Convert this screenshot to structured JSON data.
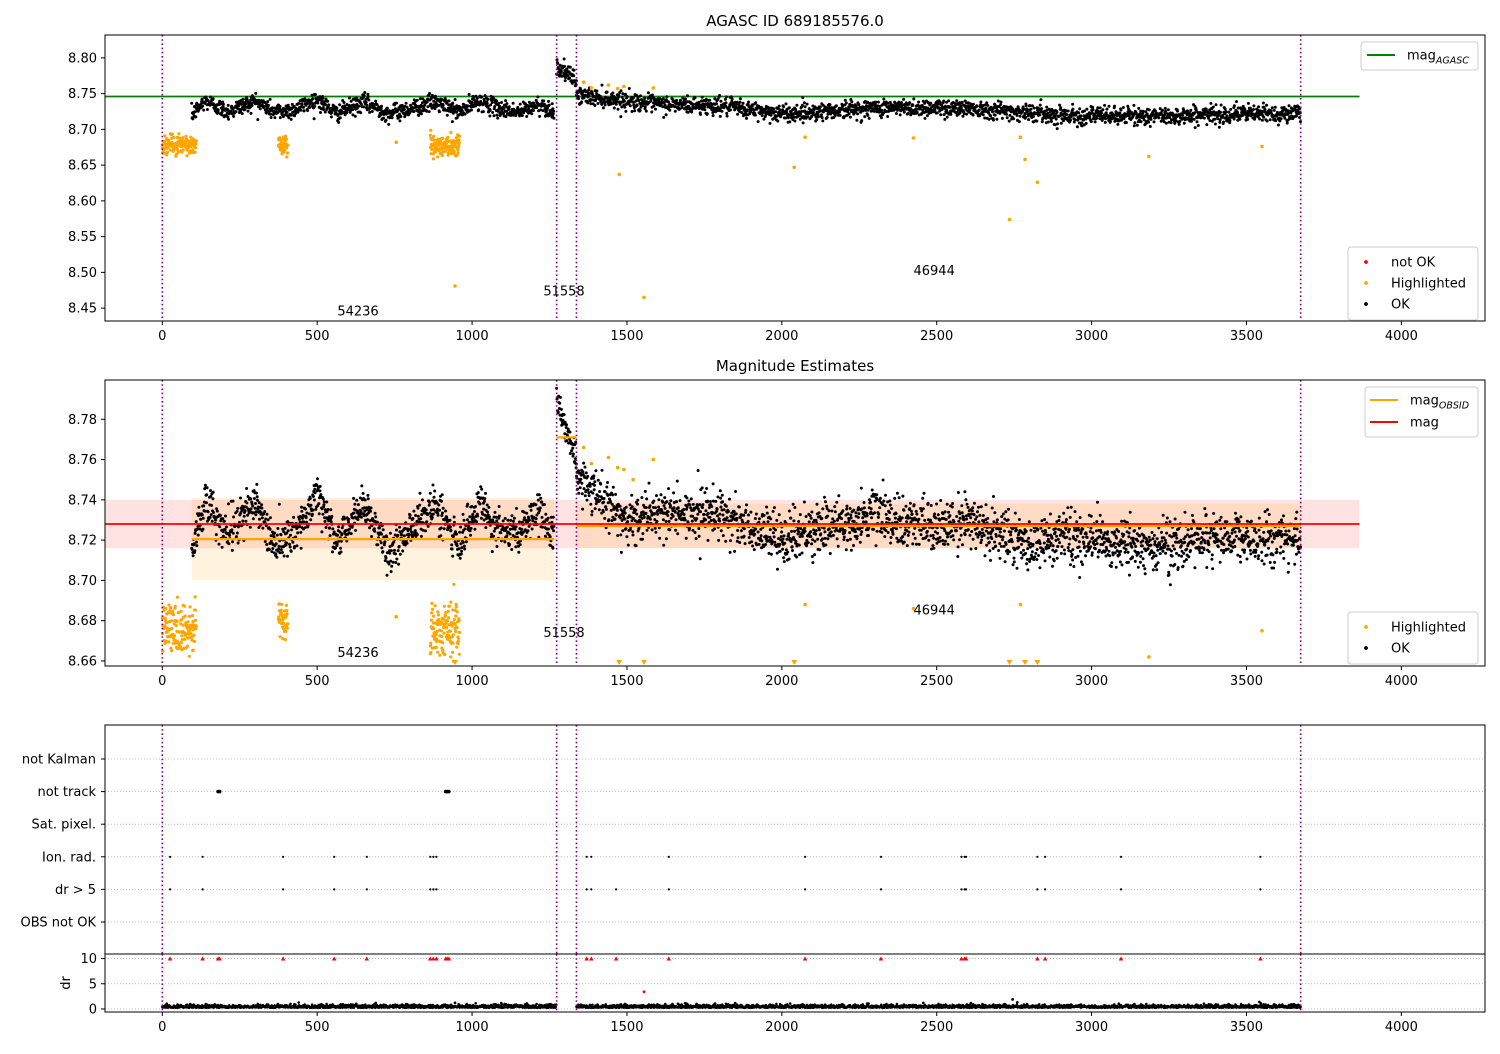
{
  "chart_data": [
    {
      "type": "scatter",
      "title": "AGASC ID 689185576.0",
      "xlim": [
        -185,
        4270
      ],
      "ylim": [
        8.432,
        8.832
      ],
      "xticks": [
        0,
        500,
        1000,
        1500,
        2000,
        2500,
        3000,
        3500,
        4000
      ],
      "yticks": [
        8.45,
        8.5,
        8.55,
        8.6,
        8.65,
        8.7,
        8.75,
        8.8
      ],
      "grid": false,
      "observation_boundaries": [
        0,
        1273,
        1337,
        3675
      ],
      "obsid_labels": [
        {
          "text": "54236",
          "x": 565,
          "y": 8.44
        },
        {
          "text": "51558",
          "x": 1230,
          "y": 8.468
        },
        {
          "text": "46944",
          "x": 2425,
          "y": 8.496
        }
      ],
      "reference_line": {
        "name": "mag_AGASC",
        "y": 8.746,
        "x": [
          -185,
          3865
        ],
        "color": "#008000"
      },
      "legend_upper": {
        "position": "top-right",
        "entries": [
          {
            "main": "mag",
            "sub": "AGASC",
            "color": "#008000",
            "kind": "line"
          }
        ]
      },
      "legend_lower": {
        "position": "bottom-right",
        "entries": [
          {
            "label": "not OK",
            "color": "#ff0000",
            "kind": "marker"
          },
          {
            "label": "Highlighted",
            "color": "#ffa500",
            "kind": "marker"
          },
          {
            "label": "OK",
            "color": "#000000",
            "kind": "marker"
          }
        ]
      },
      "series": [
        {
          "name": "OK",
          "color": "#000000",
          "segments": [
            {
              "x": [
                95,
                1265
              ],
              "points": [
                [
                  95,
                  8.72
                ],
                [
                  140,
                  8.74
                ],
                [
                  210,
                  8.725
                ],
                [
                  300,
                  8.74
                ],
                [
                  360,
                  8.725
                ],
                [
                  420,
                  8.727
                ],
                [
                  500,
                  8.742
                ],
                [
                  560,
                  8.722
                ],
                [
                  650,
                  8.738
                ],
                [
                  730,
                  8.722
                ],
                [
                  810,
                  8.73
                ],
                [
                  880,
                  8.738
                ],
                [
                  960,
                  8.724
                ],
                [
                  1020,
                  8.74
                ],
                [
                  1080,
                  8.73
                ],
                [
                  1150,
                  8.724
                ],
                [
                  1220,
                  8.735
                ],
                [
                  1265,
                  8.724
                ]
              ],
              "noise": 0.006
            },
            {
              "x": [
                1273,
                1337
              ],
              "points": [
                [
                  1273,
                  8.788
                ],
                [
                  1337,
                  8.768
                ]
              ],
              "noise": 0.006
            },
            {
              "x": [
                1337,
                3675
              ],
              "points": [
                [
                  1337,
                  8.748
                ],
                [
                  1500,
                  8.74
                ],
                [
                  1600,
                  8.735
                ],
                [
                  1800,
                  8.733
                ],
                [
                  2000,
                  8.722
                ],
                [
                  2300,
                  8.73
                ],
                [
                  2600,
                  8.73
                ],
                [
                  2900,
                  8.72
                ],
                [
                  3200,
                  8.718
                ],
                [
                  3500,
                  8.722
                ],
                [
                  3675,
                  8.722
                ]
              ],
              "noise": 0.006
            }
          ]
        },
        {
          "name": "Highlighted",
          "color": "#ffa500",
          "clusters": [
            {
              "x": [
                0,
                110
              ],
              "y": 8.678,
              "spread": 0.007
            },
            {
              "x": [
                375,
                405
              ],
              "y": 8.678,
              "spread": 0.008
            },
            {
              "x": [
                865,
                960
              ],
              "y": 8.678,
              "spread": 0.007
            }
          ],
          "points": [
            [
              755,
              8.682
            ],
            [
              945,
              8.481
            ],
            [
              1360,
              8.766
            ],
            [
              1385,
              8.758
            ],
            [
              1440,
              8.762
            ],
            [
              1470,
              8.757
            ],
            [
              1490,
              8.76
            ],
            [
              1475,
              8.637
            ],
            [
              1555,
              8.465
            ],
            [
              1585,
              8.758
            ],
            [
              2040,
              8.647
            ],
            [
              2075,
              8.689
            ],
            [
              2425,
              8.688
            ],
            [
              2735,
              8.574
            ],
            [
              2770,
              8.689
            ],
            [
              2785,
              8.658
            ],
            [
              2825,
              8.626
            ],
            [
              3185,
              8.662
            ],
            [
              3550,
              8.676
            ]
          ]
        }
      ]
    },
    {
      "type": "scatter",
      "title": "Magnitude Estimates",
      "xlim": [
        -185,
        4270
      ],
      "ylim": [
        8.6575,
        8.7995
      ],
      "xticks": [
        0,
        500,
        1000,
        1500,
        2000,
        2500,
        3000,
        3500,
        4000
      ],
      "yticks": [
        8.66,
        8.68,
        8.7,
        8.72,
        8.74,
        8.76,
        8.78
      ],
      "grid": false,
      "observation_boundaries": [
        0,
        1273,
        1337,
        3675
      ],
      "obsid_labels": [
        {
          "text": "54236",
          "x": 565,
          "y": 8.662
        },
        {
          "text": "51558",
          "x": 1230,
          "y": 8.672
        },
        {
          "text": "46944",
          "x": 2425,
          "y": 8.683
        }
      ],
      "mag_line": {
        "name": "mag",
        "y": 8.728,
        "x": [
          -185,
          3865
        ],
        "color": "#ff0000",
        "band": [
          8.716,
          8.74
        ]
      },
      "obsid_mags": [
        {
          "x": [
            95,
            1265
          ],
          "y": 8.7205,
          "band": [
            8.7,
            8.741
          ]
        },
        {
          "x": [
            1273,
            1337
          ],
          "y": 8.771,
          "band": [
            8.771,
            8.771
          ]
        },
        {
          "x": [
            1337,
            3675
          ],
          "y": 8.727,
          "band": [
            8.716,
            8.738
          ]
        }
      ],
      "legend_upper": {
        "position": "top-right",
        "entries": [
          {
            "main": "mag",
            "sub": "OBSID",
            "color": "#ffa500",
            "kind": "line"
          },
          {
            "main": "mag",
            "sub": "",
            "color": "#ff0000",
            "kind": "line"
          }
        ]
      },
      "legend_lower": {
        "position": "bottom-right",
        "entries": [
          {
            "label": "Highlighted",
            "color": "#ffa500",
            "kind": "marker"
          },
          {
            "label": "OK",
            "color": "#000000",
            "kind": "marker"
          }
        ]
      },
      "series": [
        {
          "name": "OK",
          "color": "#000000",
          "segments": [
            {
              "x": [
                95,
                1265
              ],
              "points": [
                [
                  95,
                  8.714
                ],
                [
                  140,
                  8.74
                ],
                [
                  210,
                  8.722
                ],
                [
                  300,
                  8.74
                ],
                [
                  360,
                  8.718
                ],
                [
                  420,
                  8.722
                ],
                [
                  500,
                  8.742
                ],
                [
                  560,
                  8.718
                ],
                [
                  650,
                  8.738
                ],
                [
                  730,
                  8.714
                ],
                [
                  810,
                  8.726
                ],
                [
                  880,
                  8.738
                ],
                [
                  960,
                  8.718
                ],
                [
                  1020,
                  8.74
                ],
                [
                  1080,
                  8.726
                ],
                [
                  1150,
                  8.722
                ],
                [
                  1220,
                  8.735
                ],
                [
                  1265,
                  8.722
                ]
              ],
              "noise": 0.005
            },
            {
              "x": [
                1273,
                1337
              ],
              "points": [
                [
                  1273,
                  8.79
                ],
                [
                  1300,
                  8.776
                ],
                [
                  1337,
                  8.762
                ]
              ],
              "noise": 0.004
            },
            {
              "x": [
                1337,
                3675
              ],
              "points": [
                [
                  1337,
                  8.752
                ],
                [
                  1420,
                  8.74
                ],
                [
                  1500,
                  8.73
                ],
                [
                  1600,
                  8.734
                ],
                [
                  1800,
                  8.733
                ],
                [
                  2000,
                  8.72
                ],
                [
                  2300,
                  8.732
                ],
                [
                  2500,
                  8.726
                ],
                [
                  2600,
                  8.73
                ],
                [
                  2800,
                  8.716
                ],
                [
                  2900,
                  8.722
                ],
                [
                  3200,
                  8.715
                ],
                [
                  3400,
                  8.722
                ],
                [
                  3675,
                  8.72
                ]
              ],
              "noise": 0.006
            }
          ]
        },
        {
          "name": "Highlighted",
          "color": "#ffa500",
          "clusters": [
            {
              "x": [
                0,
                110
              ],
              "y": 8.676,
              "spread": 0.007
            },
            {
              "x": [
                375,
                405
              ],
              "y": 8.68,
              "spread": 0.006
            },
            {
              "x": [
                865,
                960
              ],
              "y": 8.676,
              "spread": 0.007
            }
          ],
          "points": [
            [
              755,
              8.682
            ],
            [
              1360,
              8.766
            ],
            [
              1385,
              8.758
            ],
            [
              1440,
              8.761
            ],
            [
              1470,
              8.756
            ],
            [
              1490,
              8.755
            ],
            [
              1520,
              8.75
            ],
            [
              1585,
              8.76
            ],
            [
              2075,
              8.688
            ],
            [
              2425,
              8.686
            ],
            [
              2770,
              8.688
            ],
            [
              3185,
              8.662
            ],
            [
              3550,
              8.675
            ]
          ],
          "off_scale_markers": [
            945,
            1475,
            1555,
            2040,
            2735,
            2785,
            2825
          ]
        }
      ]
    },
    {
      "type": "scatter",
      "title": "",
      "xlim": [
        -185,
        4270
      ],
      "xticks": [
        0,
        500,
        1000,
        1500,
        2000,
        2500,
        3000,
        3500,
        4000
      ],
      "observation_boundaries": [
        0,
        1273,
        1337,
        3675
      ],
      "flags": {
        "labels": [
          "not Kalman",
          "not track",
          "Sat. pixel.",
          "Ion. rad.",
          "dr > 5",
          "OBS not OK"
        ],
        "not Kalman": [],
        "not track": [
          180,
          185,
          915,
          920,
          925
        ],
        "Sat. pixel.": [],
        "Ion. rad.": [
          25,
          130,
          390,
          555,
          660,
          865,
          875,
          885,
          1370,
          1385,
          1635,
          2075,
          2320,
          2580,
          2590,
          2595,
          2825,
          2850,
          3095,
          3545
        ],
        "dr > 5": [
          25,
          130,
          390,
          555,
          660,
          865,
          875,
          885,
          1370,
          1385,
          1465,
          1635,
          2075,
          2320,
          2580,
          2590,
          2595,
          2825,
          2850,
          3095,
          3545
        ],
        "OBS not OK": []
      },
      "dr": {
        "ylabel": "dr",
        "ylim": [
          -0.6,
          10.9
        ],
        "yticks": [
          0,
          5,
          10
        ],
        "baseline": {
          "segments": [
            [
              0,
              1273
            ],
            [
              1337,
              3675
            ]
          ],
          "level": 0.4,
          "noise": 0.3
        },
        "outliers": [
          [
            945,
            1.2
          ],
          [
            1555,
            3.4
          ],
          [
            2745,
            1.9
          ],
          [
            2760,
            1.3
          ]
        ],
        "capped_at_10": [
          25,
          130,
          180,
          185,
          390,
          555,
          660,
          865,
          875,
          885,
          915,
          920,
          925,
          1370,
          1385,
          1465,
          1635,
          2075,
          2320,
          2580,
          2590,
          2595,
          2825,
          2850,
          3095,
          3545
        ]
      }
    }
  ]
}
